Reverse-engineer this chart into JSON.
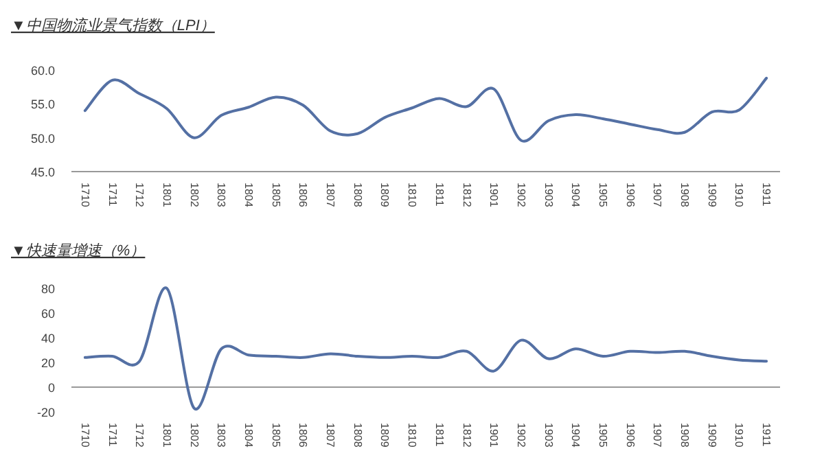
{
  "chart_data": [
    {
      "type": "line",
      "title": "▼中国物流业景气指数（LPI）",
      "categories": [
        "1710",
        "1711",
        "1712",
        "1801",
        "1802",
        "1803",
        "1804",
        "1805",
        "1806",
        "1807",
        "1808",
        "1809",
        "1810",
        "1811",
        "1812",
        "1901",
        "1902",
        "1903",
        "1904",
        "1905",
        "1906",
        "1907",
        "1908",
        "1909",
        "1910",
        "1911"
      ],
      "series": [
        {
          "color": "#5470a4",
          "values": [
            54.0,
            58.5,
            56.5,
            54.3,
            50.0,
            53.3,
            54.5,
            56.0,
            54.8,
            51.0,
            50.6,
            53.0,
            54.4,
            55.8,
            54.6,
            57.2,
            49.6,
            52.5,
            53.4,
            52.8,
            52.0,
            51.2,
            50.8,
            53.8,
            54.1,
            58.8
          ]
        }
      ],
      "ylim": [
        45,
        60
      ],
      "yticks": [
        {
          "value": 45,
          "label": "45.0"
        },
        {
          "value": 50,
          "label": "50.0"
        },
        {
          "value": 55,
          "label": "55.0"
        },
        {
          "value": 60,
          "label": "60.0"
        }
      ]
    },
    {
      "type": "line",
      "title": "▼快速量增速（%）",
      "categories": [
        "1710",
        "1711",
        "1712",
        "1801",
        "1802",
        "1803",
        "1804",
        "1805",
        "1806",
        "1807",
        "1808",
        "1809",
        "1810",
        "1811",
        "1812",
        "1901",
        "1902",
        "1903",
        "1904",
        "1905",
        "1906",
        "1907",
        "1908",
        "1909",
        "1910",
        "1911"
      ],
      "series": [
        {
          "color": "#5470a4",
          "values": [
            24,
            25,
            21,
            80,
            -17,
            31,
            26,
            25,
            24,
            27,
            25,
            24,
            25,
            24,
            29,
            13,
            38,
            23,
            31,
            25,
            29,
            28,
            29,
            25,
            22,
            21
          ]
        }
      ],
      "ylim": [
        -20,
        80
      ],
      "yticks": [
        -20,
        0,
        20,
        40,
        60,
        80
      ]
    }
  ]
}
